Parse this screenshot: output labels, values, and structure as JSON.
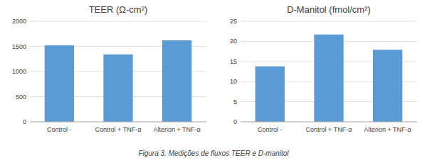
{
  "chart_data": [
    {
      "type": "bar",
      "title": "TEER (Ω-cm²)",
      "categories": [
        "Control -",
        "Control + TNF-α",
        "Alterion + TNF-α"
      ],
      "values": [
        1520,
        1340,
        1620
      ],
      "color": "#5b9bd5",
      "ylim": [
        0,
        2000
      ],
      "yticks": [
        0,
        500,
        1000,
        1500,
        2000
      ],
      "grid": true
    },
    {
      "type": "bar",
      "title": "D-Manitol (fmol/cm²)",
      "categories": [
        "Control -",
        "Control + TNF-α",
        "Alterion + TNF-α"
      ],
      "values": [
        13.8,
        21.7,
        17.9
      ],
      "color": "#5b9bd5",
      "ylim": [
        0,
        25
      ],
      "yticks": [
        0,
        5,
        10,
        15,
        20,
        25
      ],
      "grid": true
    }
  ],
  "caption": "Figura 3. Medições de fluxos TEER e D-manitol"
}
